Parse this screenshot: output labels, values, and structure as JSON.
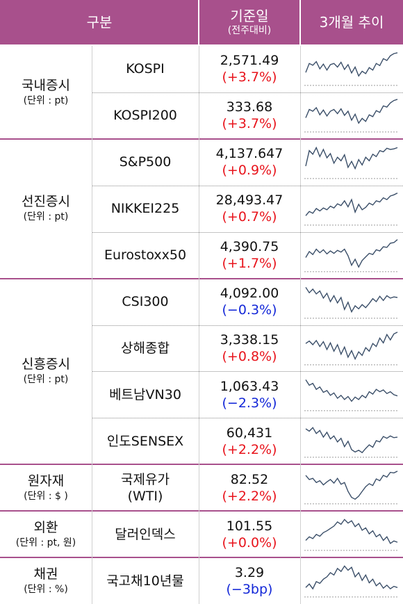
{
  "header": {
    "category": "구분",
    "base_date": "기준일",
    "base_date_sub": "(전주대비)",
    "trend": "3개월 추이"
  },
  "groups": [
    {
      "name": "국내증시",
      "unit": "(단위 : pt)",
      "rows": [
        {
          "name": "KOSPI",
          "value": "2,571.49",
          "change": "(+3.7%)",
          "direction": "up",
          "trend": [
            0.32,
            0.62,
            0.56,
            0.68,
            0.44,
            0.6,
            0.4,
            0.58,
            0.62,
            0.5,
            0.66,
            0.42,
            0.58,
            0.3,
            0.5,
            0.2,
            0.36,
            0.28,
            0.48,
            0.4,
            0.62,
            0.55,
            0.78,
            0.72,
            0.88,
            0.95,
            0.98
          ]
        },
        {
          "name": "KOSPI200",
          "value": "333.68",
          "change": "(+3.7%)",
          "direction": "up",
          "trend": [
            0.36,
            0.64,
            0.58,
            0.7,
            0.46,
            0.62,
            0.42,
            0.58,
            0.64,
            0.5,
            0.66,
            0.44,
            0.58,
            0.28,
            0.48,
            0.18,
            0.34,
            0.24,
            0.46,
            0.4,
            0.6,
            0.54,
            0.76,
            0.72,
            0.86,
            0.94,
            0.98
          ]
        }
      ]
    },
    {
      "name": "선진증시",
      "unit": "(단위 : pt)",
      "rows": [
        {
          "name": "S&P500",
          "value": "4,137.647",
          "change": "(+0.9%)",
          "direction": "up",
          "trend": [
            0.3,
            0.82,
            0.7,
            0.92,
            0.62,
            0.86,
            0.58,
            0.72,
            0.4,
            0.6,
            0.48,
            0.68,
            0.26,
            0.46,
            0.22,
            0.52,
            0.34,
            0.6,
            0.48,
            0.7,
            0.62,
            0.82,
            0.78,
            0.9,
            0.86,
            0.88,
            0.92
          ]
        },
        {
          "name": "NIKKEI225",
          "value": "28,493.47",
          "change": "(+0.7%)",
          "direction": "up",
          "trend": [
            0.2,
            0.34,
            0.28,
            0.44,
            0.36,
            0.46,
            0.4,
            0.52,
            0.46,
            0.6,
            0.54,
            0.7,
            0.5,
            0.74,
            0.32,
            0.58,
            0.4,
            0.48,
            0.62,
            0.56,
            0.7,
            0.66,
            0.8,
            0.74,
            0.86,
            0.9,
            0.96
          ]
        },
        {
          "name": "Eurostoxx50",
          "value": "4,390.75",
          "change": "(+1.7%)",
          "direction": "up",
          "trend": [
            0.36,
            0.56,
            0.46,
            0.64,
            0.52,
            0.62,
            0.48,
            0.58,
            0.5,
            0.6,
            0.54,
            0.64,
            0.42,
            0.1,
            0.3,
            0.04,
            0.26,
            0.38,
            0.5,
            0.46,
            0.62,
            0.58,
            0.72,
            0.7,
            0.84,
            0.86,
            0.96
          ]
        }
      ]
    },
    {
      "name": "신흥증시",
      "unit": "(단위 : pt)",
      "rows": [
        {
          "name": "CSI300",
          "value": "4,092.00",
          "change": "(−0.3%)",
          "direction": "down",
          "trend": [
            0.92,
            0.74,
            0.86,
            0.7,
            0.8,
            0.56,
            0.72,
            0.44,
            0.64,
            0.4,
            0.58,
            0.18,
            0.42,
            0.1,
            0.3,
            0.2,
            0.34,
            0.24,
            0.38,
            0.54,
            0.44,
            0.62,
            0.48,
            0.64,
            0.56,
            0.6,
            0.58
          ]
        },
        {
          "name": "상해종합",
          "value": "3,338.15",
          "change": "(+0.8%)",
          "direction": "up",
          "trend": [
            0.6,
            0.68,
            0.56,
            0.7,
            0.5,
            0.66,
            0.4,
            0.62,
            0.34,
            0.56,
            0.24,
            0.48,
            0.14,
            0.36,
            0.08,
            0.32,
            0.2,
            0.46,
            0.34,
            0.6,
            0.5,
            0.78,
            0.62,
            0.9,
            0.72,
            0.92,
            0.98
          ]
        },
        {
          "name": "베트남VN30",
          "value": "1,063.43",
          "change": "(−2.3%)",
          "direction": "down",
          "trend": [
            0.92,
            0.74,
            0.8,
            0.6,
            0.68,
            0.5,
            0.56,
            0.4,
            0.48,
            0.3,
            0.4,
            0.26,
            0.36,
            0.2,
            0.34,
            0.26,
            0.4,
            0.32,
            0.52,
            0.44,
            0.6,
            0.52,
            0.58,
            0.46,
            0.52,
            0.42,
            0.38
          ]
        },
        {
          "name": "인도SENSEX",
          "value": "60,431",
          "change": "(+2.2%)",
          "direction": "up",
          "trend": [
            0.84,
            0.76,
            0.88,
            0.68,
            0.78,
            0.56,
            0.72,
            0.5,
            0.6,
            0.4,
            0.52,
            0.24,
            0.42,
            0.14,
            0.06,
            0.12,
            0.04,
            0.18,
            0.3,
            0.22,
            0.44,
            0.4,
            0.58,
            0.52,
            0.6,
            0.54,
            0.56
          ]
        }
      ]
    },
    {
      "name": "원자재",
      "unit": "(단위 : $ )",
      "rows": [
        {
          "name": "국제유가\n(WTI)",
          "value": "82.52",
          "change": "(+2.2%)",
          "direction": "up",
          "trend": [
            0.84,
            0.7,
            0.74,
            0.6,
            0.66,
            0.52,
            0.62,
            0.7,
            0.58,
            0.74,
            0.54,
            0.6,
            0.3,
            0.1,
            0.04,
            0.14,
            0.3,
            0.46,
            0.56,
            0.5,
            0.72,
            0.66,
            0.84,
            0.78,
            0.94,
            0.92,
            0.98
          ]
        }
      ]
    },
    {
      "name": "외환",
      "unit": "(단위 : pt, 원)",
      "rows": [
        {
          "name": "달러인덱스",
          "value": "101.55",
          "change": "(+0.0%)",
          "direction": "up",
          "trend": [
            0.22,
            0.34,
            0.28,
            0.42,
            0.36,
            0.48,
            0.54,
            0.62,
            0.7,
            0.84,
            0.76,
            0.92,
            0.8,
            0.88,
            0.68,
            0.78,
            0.56,
            0.64,
            0.44,
            0.54,
            0.34,
            0.42,
            0.22,
            0.34,
            0.12,
            0.2,
            0.16
          ]
        }
      ]
    },
    {
      "name": "채권",
      "unit": "(단위 : %)",
      "rows": [
        {
          "name": "국고채10년물",
          "value": "3.29",
          "change": "(−3bp)",
          "direction": "down",
          "trend": [
            0.2,
            0.32,
            0.16,
            0.4,
            0.34,
            0.48,
            0.56,
            0.7,
            0.62,
            0.84,
            0.74,
            0.92,
            0.78,
            0.88,
            0.56,
            0.7,
            0.44,
            0.62,
            0.36,
            0.48,
            0.26,
            0.36,
            0.18,
            0.28,
            0.16,
            0.24,
            0.2
          ]
        }
      ]
    }
  ],
  "colors": {
    "header_bg": "#a8508c",
    "up": "#e8141c",
    "down": "#1428d8",
    "trend_line": "#3a4e68"
  }
}
